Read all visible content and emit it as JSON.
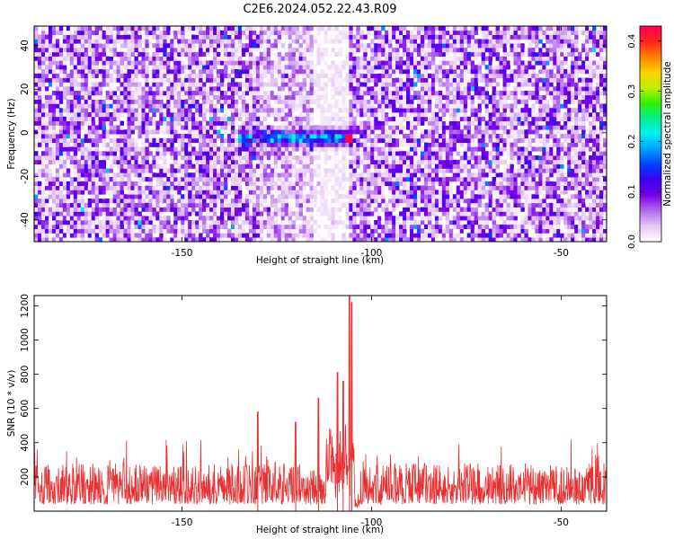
{
  "title": "C2E6.2024.052.22.43.R09",
  "chart_data": [
    {
      "type": "heatmap",
      "xlabel": "Height of straight line (km)",
      "ylabel": "Frequency (Hz)",
      "xlim": [
        -189,
        -38
      ],
      "ylim": [
        -50,
        49
      ],
      "x_ticks": [
        -150,
        -100,
        -50
      ],
      "y_ticks": [
        -40,
        -20,
        0,
        20,
        40
      ],
      "colorbar": {
        "label": "Normalized spectral amplitude",
        "range": [
          0,
          0.43
        ],
        "ticks": [
          "0.0",
          "0.1",
          "0.2",
          "0.3",
          "0.4"
        ],
        "colors": [
          "#ffffff",
          "#e6c8f5",
          "#b36cf0",
          "#7a00e6",
          "#3c00f0",
          "#0040ff",
          "#00a0ff",
          "#00f0f0",
          "#00f090",
          "#30f000",
          "#c0f000",
          "#ffd000",
          "#ff8000",
          "#ff2020",
          "#ff0050"
        ]
      },
      "features": {
        "signal_band": {
          "x_range": [
            -135,
            -105
          ],
          "frequency_hz": -2,
          "peak_value": 0.42,
          "peak_x": -106
        },
        "low_amplitude_gap": {
          "x_range": [
            -112,
            -106
          ]
        }
      }
    },
    {
      "type": "line",
      "xlabel": "Height of straight line (km)",
      "ylabel": "SNR (10 * v/v)",
      "xlim": [
        -189,
        -38
      ],
      "ylim": [
        0,
        1260
      ],
      "x_ticks": [
        -150,
        -100,
        -50
      ],
      "y_ticks": [
        200,
        400,
        600,
        800,
        1000,
        1200
      ],
      "color": "#e83030",
      "baseline": {
        "typical_range": [
          40,
          280
        ],
        "max_excursion": 420
      },
      "peaks": [
        {
          "x": -130,
          "y": 580
        },
        {
          "x": -120,
          "y": 520
        },
        {
          "x": -114,
          "y": 660
        },
        {
          "x": -109,
          "y": 810
        },
        {
          "x": -107.5,
          "y": 760
        },
        {
          "x": -105.8,
          "y": 1260
        },
        {
          "x": -105.2,
          "y": 1220
        }
      ]
    }
  ]
}
